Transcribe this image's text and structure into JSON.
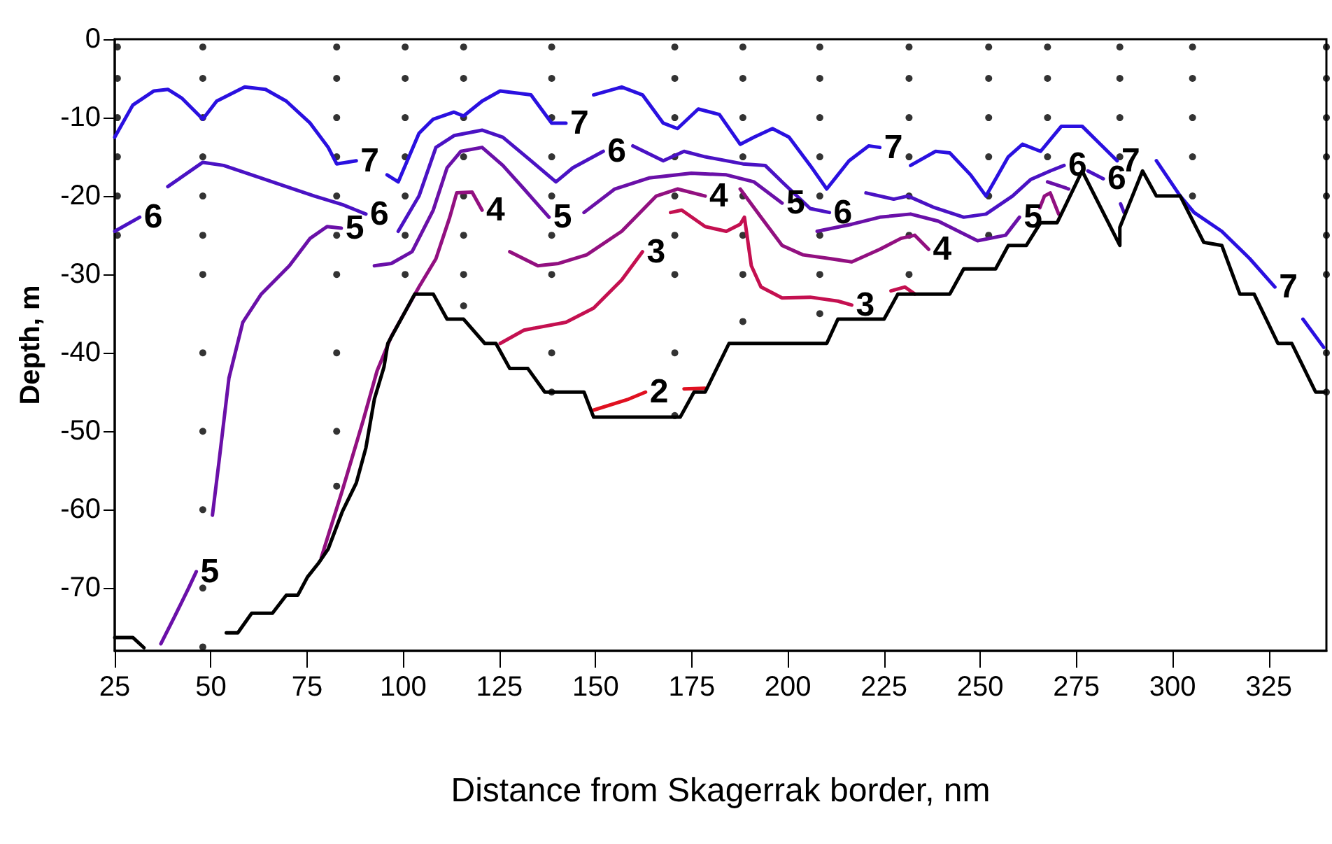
{
  "chart_data": {
    "type": "line",
    "xlabel": "Distance from Skagerrak border, nm",
    "ylabel": "Depth, m",
    "xlim": [
      25,
      340
    ],
    "xticks": [
      25,
      50,
      75,
      100,
      125,
      150,
      175,
      200,
      225,
      250,
      275,
      300,
      325
    ],
    "ylim": [
      -78,
      0
    ],
    "yticks": [
      0,
      -10,
      -20,
      -30,
      -40,
      -50,
      -60,
      -70
    ],
    "marker": "none",
    "line_style": "solid",
    "series": [
      {
        "color": "#2a10e0",
        "x": [
          25,
          29.7,
          35.2,
          38.8,
          42.4,
          47.9,
          51.5,
          58.8,
          64.2,
          69.6,
          75.8,
          80.5,
          82.7,
          87.8,
          91.4,
          95.8,
          98.7,
          104.1,
          107.8,
          113.2,
          115.7,
          120.5,
          125.2,
          133.2,
          138.6,
          142.3,
          145.1,
          149.5,
          156.8,
          162.2,
          167.6,
          171.3,
          176.7,
          182.2,
          187.6,
          191.2,
          196,
          200.3,
          205.8,
          210.1,
          215.9,
          221,
          223.9,
          228.6,
          231.9,
          238.4,
          242.1,
          247.5,
          251.5,
          257.3,
          261,
          265.7,
          271.1,
          276.5,
          280.2,
          285.6,
          291,
          295.8,
          302,
          305.6,
          312.8,
          320.1,
          326.6,
          331,
          333.9,
          339.3
        ],
        "values": [
          -12.5,
          -8.4,
          -6.6,
          -6.4,
          -7.5,
          -10.2,
          -7.9,
          -6.1,
          -6.4,
          -7.9,
          -10.7,
          -13.8,
          -15.9,
          -15.5,
          null,
          -17.3,
          -18.2,
          -12,
          -10.2,
          -9.3,
          -9.8,
          -7.9,
          -6.6,
          -7.1,
          -10.7,
          -10.7,
          null,
          -7.1,
          -6.1,
          -7.1,
          -10.7,
          -11.4,
          -8.9,
          -9.6,
          -13.4,
          -12.5,
          -11.4,
          -12.5,
          -16.1,
          -19.1,
          -15.5,
          -13.6,
          -13.8,
          null,
          -16.1,
          -14.3,
          -14.5,
          -17.3,
          -20,
          -15,
          -13.4,
          -14.3,
          -11.1,
          -11.1,
          -12.9,
          -15.5,
          null,
          -15.5,
          -20,
          -22.1,
          -24.5,
          -28,
          -31.6,
          null,
          -35.7,
          -39.3
        ]
      },
      {
        "color": "#4a12c4",
        "x": [
          25,
          31.5,
          34.4,
          38.8,
          47.9,
          53.3,
          60.6,
          69.6,
          76.9,
          84.2,
          90.3,
          94,
          98.7,
          104.1,
          108.5,
          113.2,
          120.5,
          125.9,
          133.2,
          139.7,
          144.1,
          152,
          155.7,
          159.7,
          167.6,
          173,
          178.5,
          188.3,
          194.1,
          198.5,
          205.8,
          210.8,
          215.6,
          220.3,
          227.5,
          231.2,
          237.7,
          245.7,
          251.5,
          258.4,
          263.1,
          268.2,
          271.8,
          273.6,
          278,
          282,
          285.3,
          286.5,
          287.4
        ],
        "values": [
          -24.5,
          -22.7,
          null,
          -18.8,
          -15.7,
          -16.1,
          -17.3,
          -18.8,
          -20,
          -21.1,
          -22.3,
          null,
          -24.5,
          -20,
          -13.8,
          -12.3,
          -11.6,
          -12.5,
          -15.5,
          -18.2,
          -16.4,
          -14.3,
          null,
          -13.6,
          -15.5,
          -14.3,
          -15,
          -15.9,
          -16.1,
          -18.2,
          -21.6,
          -22.1,
          null,
          -19.6,
          -20.4,
          -20,
          -21.4,
          -22.7,
          -22.3,
          -20,
          -17.9,
          -16.8,
          -16.1,
          null,
          -16.8,
          -17.8,
          null,
          -21,
          -22.1
        ]
      },
      {
        "color": "#6a10a8",
        "x": [
          37,
          40.6,
          44.2,
          46.2,
          47.9,
          50.4,
          52.1,
          54.7,
          58.3,
          63.1,
          70.4,
          75.8,
          80.2,
          83.9,
          88.5,
          92.5,
          96.9,
          102.3,
          107.8,
          111.4,
          115,
          120.5,
          125.9,
          131.4,
          137.9,
          141.3,
          147,
          155,
          163.9,
          174.9,
          184,
          191.2,
          198.5,
          202.9,
          207.6,
          216.6,
          223.9,
          231.9,
          239.1,
          249.3,
          256.6,
          260.2,
          263.8,
          267.5,
          273
        ],
        "values": [
          -77.1,
          -73.6,
          -70,
          -67.9,
          null,
          -60.7,
          -53.9,
          -43.2,
          -36.1,
          -32.5,
          -28.9,
          -25.4,
          -23.9,
          -24.1,
          null,
          -28.9,
          -28.6,
          -27.1,
          -21.8,
          -16.4,
          -14.3,
          -13.8,
          -16.1,
          -19.1,
          -22.7,
          null,
          -22.1,
          -19.1,
          -17.7,
          -17.1,
          -17.3,
          -18.2,
          -20.9,
          null,
          -24.5,
          -23.6,
          -22.7,
          -22.3,
          -23.2,
          -25.7,
          -25,
          -22.7,
          null,
          -18.2,
          -19.1
        ]
      },
      {
        "color": "#921080",
        "x": [
          78.7,
          84.2,
          89.6,
          93.2,
          96.9,
          104.1,
          108.5,
          112.1,
          113.9,
          117.9,
          120.5,
          124.1,
          127.7,
          135,
          140.4,
          147.7,
          156.8,
          165.8,
          171.3,
          178.5,
          183.3,
          187.6,
          193,
          198.5,
          203.9,
          211.2,
          216.6,
          223.9,
          229.4,
          233,
          236.6,
          240.6,
          265.5,
          266.7,
          268.2,
          270.4
        ],
        "values": [
          -66.1,
          -57.5,
          -48.6,
          -42.3,
          -37.9,
          -31.6,
          -28,
          -22.7,
          -19.6,
          -19.5,
          -21.8,
          null,
          -27.1,
          -28.9,
          -28.6,
          -27.5,
          -24.5,
          -20,
          -19.1,
          -20,
          null,
          -19.1,
          -22.7,
          -26.3,
          -27.5,
          -28,
          -28.4,
          -26.8,
          -25.4,
          -25,
          -26.8,
          null,
          -21.5,
          -20,
          -19.6,
          -22.3
        ]
      },
      {
        "color": "#c41050",
        "x": [
          125.2,
          131.4,
          142.3,
          149.5,
          156.8,
          162.2,
          165.8,
          169.5,
          172.4,
          178.5,
          184,
          187.6,
          188.7,
          190.5,
          193,
          198.5,
          205.8,
          213,
          216.6,
          222.1,
          226.8,
          230.4,
          233
        ],
        "values": [
          -38.8,
          -37.1,
          -36.1,
          -34.3,
          -30.7,
          -27.1,
          null,
          -22.1,
          -21.8,
          -23.9,
          -24.5,
          -23.6,
          -22.7,
          -28.9,
          -31.6,
          -33,
          -32.9,
          -33.4,
          -33.9,
          null,
          -32.1,
          -31.6,
          -32.5
        ]
      },
      {
        "color": "#e01020",
        "x": [
          149.5,
          158.6,
          163,
          167.6,
          173,
          178.5
        ],
        "values": [
          -47.3,
          -45.9,
          -45,
          null,
          -44.6,
          -44.5
        ]
      },
      {
        "color": "#000000",
        "x": [
          25,
          29.7,
          32.6,
          42,
          51.5,
          54,
          57,
          60.6,
          66,
          69.6,
          72.6,
          75.1,
          78,
          80.5,
          84.2,
          87.8,
          90.3,
          92.5,
          95,
          96,
          103,
          107.8,
          111.4,
          115.7,
          121.2,
          124.1,
          127.7,
          132.4,
          136.8,
          147,
          149.5,
          172,
          175.6,
          178.5,
          184.7,
          210.1,
          213,
          225,
          228.6,
          242.1,
          245.7,
          254,
          257.3,
          262,
          265.7,
          270,
          276.5,
          286.3,
          286.3,
          292.2,
          295.8,
          302,
          308.1,
          312.8,
          317.5,
          321.2,
          327.4,
          331,
          337.2,
          339.3
        ],
        "values": [
          -76.3,
          -76.3,
          -77.6,
          null,
          null,
          -75.7,
          -75.7,
          -73.2,
          -73.2,
          -70.9,
          -70.9,
          -68.6,
          -66.8,
          -65,
          -60.2,
          -56.6,
          -52.1,
          -45.9,
          -41.8,
          -38.8,
          -32.5,
          -32.5,
          -35.7,
          -35.7,
          -38.8,
          -38.8,
          -42,
          -42,
          -45,
          -45,
          -48.2,
          -48.2,
          -45,
          -45,
          -38.8,
          -38.8,
          -35.7,
          -35.7,
          -32.5,
          -32.5,
          -29.3,
          -29.3,
          -26.3,
          -26.3,
          -23.4,
          -23.4,
          -16.8,
          -26.3,
          -24,
          -16.8,
          -20,
          -20,
          -25.9,
          -26.3,
          -32.5,
          -32.5,
          -38.8,
          -38.8,
          -45,
          -45
        ]
      },
      {
        "type": "scatter",
        "marker": "circle",
        "color": "#000000",
        "x": [
          25.7,
          25.7,
          25.7,
          25.7,
          25.7,
          25.7,
          47.9,
          47.9,
          47.9,
          47.9,
          47.9,
          47.9,
          47.9,
          47.9,
          47.9,
          47.9,
          47.9,
          47.9,
          82.7,
          82.7,
          82.7,
          82.7,
          82.7,
          82.7,
          82.7,
          82.7,
          82.7,
          82.7,
          100.5,
          100.5,
          100.5,
          100.5,
          100.5,
          100.5,
          100.5,
          115.7,
          115.7,
          115.7,
          115.7,
          115.7,
          115.7,
          115.7,
          115.7,
          138.6,
          138.6,
          138.6,
          138.6,
          138.6,
          138.6,
          138.6,
          138.6,
          138.6,
          170.6,
          170.6,
          170.6,
          170.6,
          170.6,
          170.6,
          170.6,
          170.6,
          170.6,
          188.3,
          188.3,
          188.3,
          188.3,
          188.3,
          188.3,
          188.3,
          188.3,
          208.3,
          208.3,
          208.3,
          208.3,
          208.3,
          208.3,
          208.3,
          208.3,
          231.5,
          231.5,
          231.5,
          231.5,
          231.5,
          231.5,
          231.5,
          252.2,
          252.2,
          252.2,
          252.2,
          252.2,
          252.2,
          267.5,
          267.5,
          267.5,
          267.5,
          286.3,
          286.3,
          286.3,
          286.3,
          305.2,
          305.2,
          305.2,
          305.2,
          305.2,
          340,
          340,
          340,
          340,
          340,
          340,
          340,
          340,
          340
        ],
        "values": [
          -1,
          -5,
          -10,
          -15,
          -20,
          -25,
          -1,
          -5,
          -10,
          -15,
          -20,
          -25,
          -30,
          -40,
          -50,
          -60,
          -70,
          -77.5,
          -1,
          -5,
          -10,
          -15,
          -20,
          -25,
          -30,
          -40,
          -50,
          -57,
          -1,
          -5,
          -10,
          -15,
          -20,
          -25,
          -30,
          -1,
          -5,
          -10,
          -15,
          -20,
          -25,
          -30,
          -34,
          -1,
          -5,
          -10,
          -15,
          -20,
          -25,
          -30,
          -40,
          -45,
          -1,
          -5,
          -10,
          -15,
          -20,
          -25,
          -30,
          -40,
          -48,
          -1,
          -5,
          -10,
          -15,
          -20,
          -25,
          -30,
          -36,
          -1,
          -5,
          -10,
          -15,
          -20,
          -25,
          -30,
          -35,
          -1,
          -5,
          -10,
          -15,
          -20,
          -25,
          -30,
          -1,
          -5,
          -10,
          -15,
          -20,
          -25,
          -1,
          -5,
          -10,
          -15,
          -1,
          -5,
          -10,
          -15,
          -1,
          -5,
          -10,
          -15,
          -20,
          -1,
          -5,
          -10,
          -15,
          -20,
          -25,
          -30,
          -40,
          -45
        ]
      }
    ],
    "annotations": [
      {
        "text": "7",
        "x": 87.8,
        "y": -15.5
      },
      {
        "text": "7",
        "x": 142.3,
        "y": -10.7
      },
      {
        "text": "7",
        "x": 223.9,
        "y": -13.8
      },
      {
        "text": "7",
        "x": 285.6,
        "y": -15.5
      },
      {
        "text": "7",
        "x": 326.6,
        "y": -31.6
      },
      {
        "text": "6",
        "x": 31.5,
        "y": -22.7
      },
      {
        "text": "6",
        "x": 90.3,
        "y": -22.3
      },
      {
        "text": "6",
        "x": 152,
        "y": -14.3
      },
      {
        "text": "6",
        "x": 210.8,
        "y": -22.1
      },
      {
        "text": "6",
        "x": 271.8,
        "y": -16.1
      },
      {
        "text": "6",
        "x": 282,
        "y": -17.8
      },
      {
        "text": "5",
        "x": 46.2,
        "y": -67.9
      },
      {
        "text": "5",
        "x": 83.9,
        "y": -24.1
      },
      {
        "text": "5",
        "x": 137.9,
        "y": -22.7
      },
      {
        "text": "5",
        "x": 198.5,
        "y": -20.9
      },
      {
        "text": "5",
        "x": 260.2,
        "y": -22.7
      },
      {
        "text": "4",
        "x": 120.5,
        "y": -21.8
      },
      {
        "text": "4",
        "x": 178.5,
        "y": -20
      },
      {
        "text": "4",
        "x": 236.6,
        "y": -26.8
      },
      {
        "text": "3",
        "x": 162.2,
        "y": -27.1
      },
      {
        "text": "3",
        "x": 216.6,
        "y": -33.9
      },
      {
        "text": "2",
        "x": 163,
        "y": -45
      }
    ]
  }
}
